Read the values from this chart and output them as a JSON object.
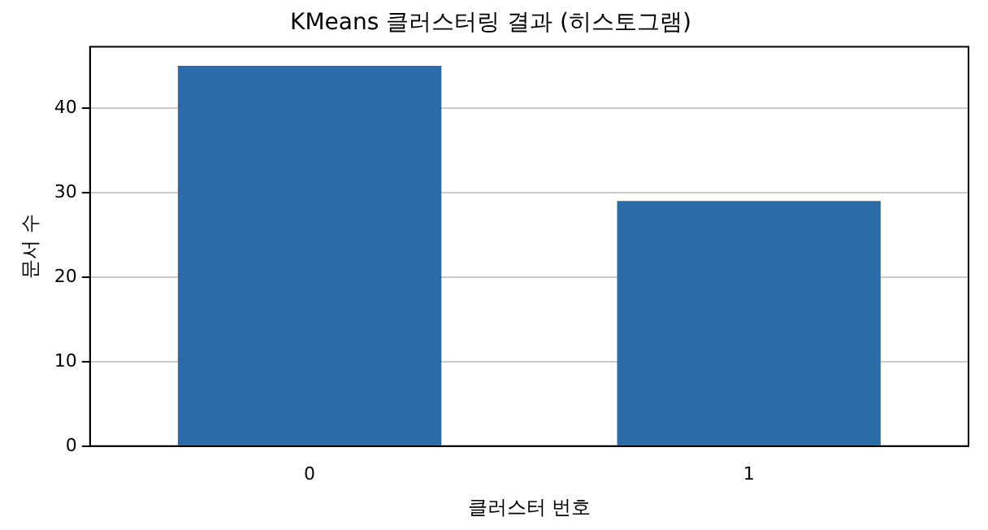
{
  "chart_data": {
    "type": "bar",
    "title": "KMeans 클러스터링 결과 (히스토그램)",
    "xlabel": "클러스터 번호",
    "ylabel": "문서 수",
    "categories": [
      "0",
      "1"
    ],
    "values": [
      45,
      29
    ],
    "color": "#2a6ca8",
    "ylim": [
      0,
      47.25
    ],
    "yticks": [
      0,
      10,
      20,
      30,
      40
    ],
    "grid": "y",
    "legend": false
  }
}
